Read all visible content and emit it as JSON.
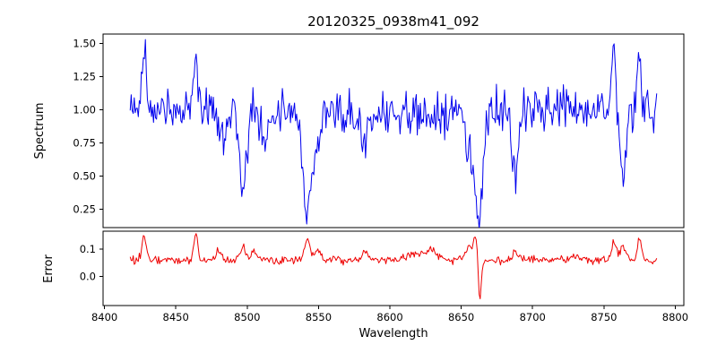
{
  "figure": {
    "background": "#ffffff"
  },
  "chart_data": {
    "type": "line",
    "title": "20120325_0938m41_092",
    "xlabel": "Wavelength",
    "xlim": [
      8399,
      8806
    ],
    "xticks": [
      8400,
      8450,
      8500,
      8550,
      8600,
      8650,
      8700,
      8750,
      8800
    ],
    "panels": [
      {
        "name": "spectrum",
        "ylabel": "Spectrum",
        "color": "#0000ee",
        "ylim": [
          0.11,
          1.57
        ],
        "ytick_values": [
          0.25,
          0.5,
          0.75,
          1.0,
          1.25,
          1.5
        ],
        "ytick_labels": [
          "0.25",
          "0.50",
          "0.75",
          "1.00",
          "1.25",
          "1.50"
        ],
        "x_start": 8418,
        "x_end": 8787,
        "n_points": 520,
        "baseline": 1.0,
        "noise_sigma": 0.075,
        "noise_seed": 20120325,
        "features": [
          {
            "center": 8428,
            "width": 1.5,
            "amp": 0.45
          },
          {
            "center": 8464,
            "width": 1.5,
            "amp": 0.42
          },
          {
            "center": 8483,
            "width": 2.0,
            "amp": -0.22
          },
          {
            "center": 8497,
            "width": 2.5,
            "amp": -0.58
          },
          {
            "center": 8513,
            "width": 2.0,
            "amp": -0.2
          },
          {
            "center": 8542,
            "width": 3.0,
            "amp": -0.74
          },
          {
            "center": 8549,
            "width": 2.0,
            "amp": -0.25
          },
          {
            "center": 8582,
            "width": 2.0,
            "amp": -0.22
          },
          {
            "center": 8600,
            "width": 50.0,
            "amp": -0.04
          },
          {
            "center": 8655,
            "width": 2.0,
            "amp": -0.25
          },
          {
            "center": 8662,
            "width": 3.0,
            "amp": -0.78
          },
          {
            "center": 8688,
            "width": 2.0,
            "amp": -0.48
          },
          {
            "center": 8757,
            "width": 1.3,
            "amp": 0.5
          },
          {
            "center": 8763,
            "width": 2.0,
            "amp": -0.48
          },
          {
            "center": 8775,
            "width": 1.3,
            "amp": 0.44
          }
        ]
      },
      {
        "name": "error",
        "ylabel": "Error",
        "color": "#ee0000",
        "ylim": [
          -0.105,
          0.165
        ],
        "ytick_values": [
          0.0,
          0.1
        ],
        "ytick_labels": [
          "0.0",
          "0.1"
        ],
        "x_start": 8418,
        "x_end": 8787,
        "n_points": 520,
        "baseline": 0.06,
        "noise_sigma": 0.007,
        "noise_seed": 938,
        "features": [
          {
            "center": 8428,
            "width": 1.5,
            "amp": 0.09
          },
          {
            "center": 8464,
            "width": 1.2,
            "amp": 0.1
          },
          {
            "center": 8480,
            "width": 2.0,
            "amp": 0.03
          },
          {
            "center": 8497,
            "width": 2.0,
            "amp": 0.045
          },
          {
            "center": 8505,
            "width": 2.0,
            "amp": 0.03
          },
          {
            "center": 8542,
            "width": 2.0,
            "amp": 0.075
          },
          {
            "center": 8549,
            "width": 2.0,
            "amp": 0.04
          },
          {
            "center": 8582,
            "width": 2.0,
            "amp": 0.03
          },
          {
            "center": 8620,
            "width": 10.0,
            "amp": 0.02
          },
          {
            "center": 8630,
            "width": 3.0,
            "amp": 0.025
          },
          {
            "center": 8655,
            "width": 2.0,
            "amp": 0.05
          },
          {
            "center": 8660,
            "width": 1.5,
            "amp": 0.09
          },
          {
            "center": 8663,
            "width": 1.0,
            "amp": -0.16
          },
          {
            "center": 8688,
            "width": 2.0,
            "amp": 0.03
          },
          {
            "center": 8730,
            "width": 4.0,
            "amp": 0.015
          },
          {
            "center": 8757,
            "width": 1.5,
            "amp": 0.065
          },
          {
            "center": 8763,
            "width": 2.0,
            "amp": 0.05
          },
          {
            "center": 8775,
            "width": 1.5,
            "amp": 0.075
          }
        ]
      }
    ]
  }
}
